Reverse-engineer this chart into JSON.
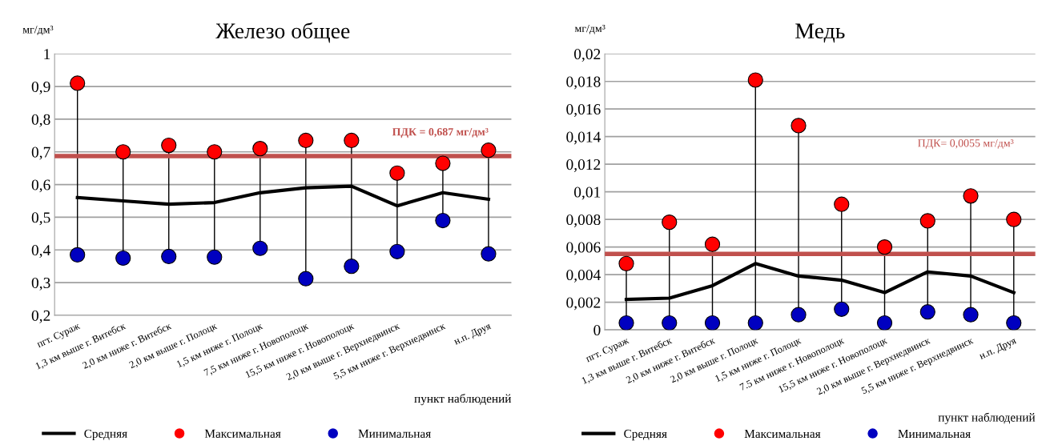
{
  "chart_data": [
    {
      "type": "line",
      "title": "Железо общее",
      "ylabel": "мг/дм³",
      "xlabel": "пункт наблюдений",
      "categories": [
        "пгт. Сураж",
        "1,3 км выше г. Витебск",
        "2,0 км ниже г. Витебск",
        "2,0 км выше г. Полоцк",
        "1,5 км ниже г. Полоцк",
        "7,5 км ниже г. Новополоцк",
        "15,5 км ниже г. Новополоцк",
        "2,0 км выше г. Верхнедвинск",
        "5,5 км ниже г. Верхнедвинск",
        "н.п. Друя"
      ],
      "series": [
        {
          "name": "Средняя",
          "color": "#000000",
          "marker": "none",
          "values": [
            0.56,
            0.55,
            0.54,
            0.545,
            0.575,
            0.59,
            0.595,
            0.535,
            0.575,
            0.555
          ]
        },
        {
          "name": "Максимальная",
          "type": "scatter",
          "color": "#ff0000",
          "marker": "circle",
          "values": [
            0.91,
            0.7,
            0.72,
            0.7,
            0.71,
            0.735,
            0.735,
            0.635,
            0.665,
            0.705
          ]
        },
        {
          "name": "Минимальная",
          "type": "scatter",
          "color": "#0000c0",
          "marker": "circle",
          "values": [
            0.385,
            0.375,
            0.38,
            0.378,
            0.405,
            0.312,
            0.35,
            0.395,
            0.49,
            0.388
          ]
        }
      ],
      "ylim": [
        0.2,
        1
      ],
      "yticks": [
        {
          "value": 0.2,
          "label": "0,2"
        },
        {
          "value": 0.3,
          "label": "0,3"
        },
        {
          "value": 0.4,
          "label": "0,4"
        },
        {
          "value": 0.5,
          "label": "0,5"
        },
        {
          "value": 0.6,
          "label": "0,6"
        },
        {
          "value": 0.7,
          "label": "0,7"
        },
        {
          "value": 0.8,
          "label": "0,8"
        },
        {
          "value": 0.9,
          "label": "0,9"
        },
        {
          "value": 1,
          "label": "1"
        }
      ],
      "ref_lines": [
        {
          "axis": "y",
          "value": 0.687,
          "label": "ПДК = 0,687 мг/дм³",
          "color": "#c0504d"
        }
      ],
      "grid": "y",
      "legend": "bottom"
    },
    {
      "type": "line",
      "title": "Медь",
      "ylabel": "мг/дм³",
      "xlabel": "пункт наблюдений",
      "categories": [
        "пгт. Сураж",
        "1,3 км выше г. Витебск",
        "2,0 км ниже г. Витебск",
        "2,0 км выше г. Полоцк",
        "1,5 км ниже г. Полоцк",
        "7.5 км ниже г. Новополоцк",
        "15,5 км ниже г. Новополоцк",
        "2,0 км выше г. Верхнедвинск",
        "5,5 км ниже г. Верхнедвинск",
        "н.п. Друя"
      ],
      "series": [
        {
          "name": "Средняя",
          "color": "#000000",
          "marker": "none",
          "values": [
            0.0022,
            0.0023,
            0.0032,
            0.0048,
            0.0039,
            0.0036,
            0.0027,
            0.0042,
            0.0039,
            0.0027
          ]
        },
        {
          "name": "Максимальная",
          "type": "scatter",
          "color": "#ff0000",
          "marker": "circle",
          "values": [
            0.0048,
            0.0078,
            0.0062,
            0.0181,
            0.0148,
            0.0091,
            0.006,
            0.0079,
            0.0097,
            0.008
          ]
        },
        {
          "name": "Минимальная",
          "type": "scatter",
          "color": "#0000c0",
          "marker": "circle",
          "values": [
            0.0005,
            0.0005,
            0.0005,
            0.0005,
            0.0011,
            0.0015,
            0.0005,
            0.0013,
            0.0011,
            0.0005
          ]
        }
      ],
      "ylim": [
        0,
        0.02
      ],
      "yticks": [
        {
          "value": 0,
          "label": "0"
        },
        {
          "value": 0.002,
          "label": "0,002"
        },
        {
          "value": 0.004,
          "label": "0,004"
        },
        {
          "value": 0.006,
          "label": "0,006"
        },
        {
          "value": 0.008,
          "label": "0,008"
        },
        {
          "value": 0.01,
          "label": "0,01"
        },
        {
          "value": 0.012,
          "label": "0,012"
        },
        {
          "value": 0.014,
          "label": "0,014"
        },
        {
          "value": 0.016,
          "label": "0,016"
        },
        {
          "value": 0.018,
          "label": "0,018"
        },
        {
          "value": 0.02,
          "label": "0,02"
        }
      ],
      "ref_lines": [
        {
          "axis": "y",
          "value": 0.0055,
          "label": "ПДК= 0,0055 мг/дм³",
          "color": "#c0504d"
        }
      ],
      "grid": "y",
      "legend": "bottom"
    }
  ]
}
